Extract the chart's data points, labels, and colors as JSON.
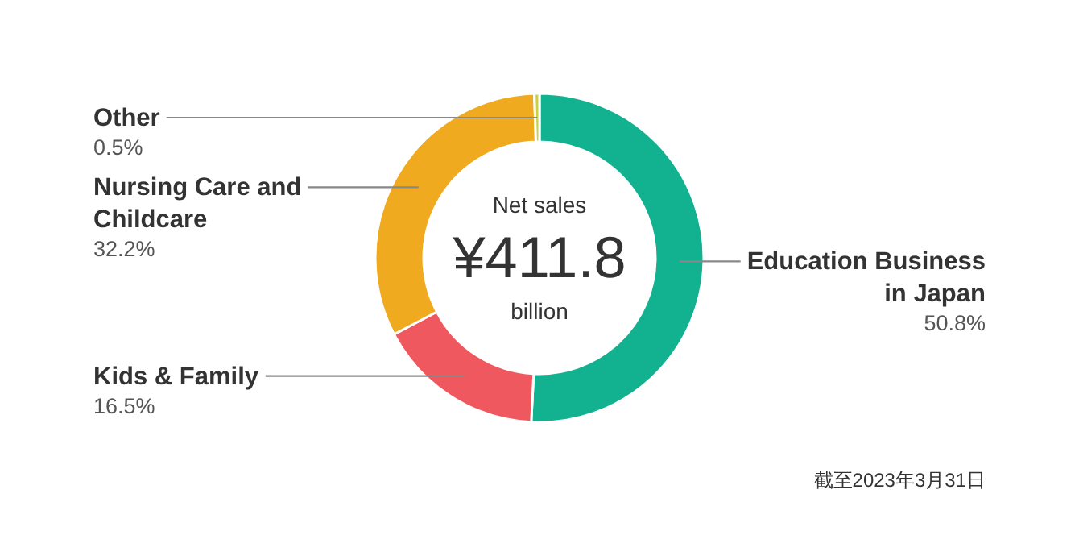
{
  "chart_data": {
    "type": "donut",
    "categories": [
      "Education Business\nin Japan",
      "Kids & Family",
      "Nursing Care and\nChildcare",
      "Other"
    ],
    "values": [
      50.8,
      16.5,
      32.2,
      0.5
    ],
    "value_labels": [
      "50.8%",
      "16.5%",
      "32.2%",
      "0.5%"
    ],
    "colors": [
      "#12b18f",
      "#ef585e",
      "#f0aa1f",
      "#cbd23a"
    ],
    "annotations": [
      "Net sales",
      "¥411.8",
      "billion",
      "截至2023年3月31日"
    ]
  }
}
